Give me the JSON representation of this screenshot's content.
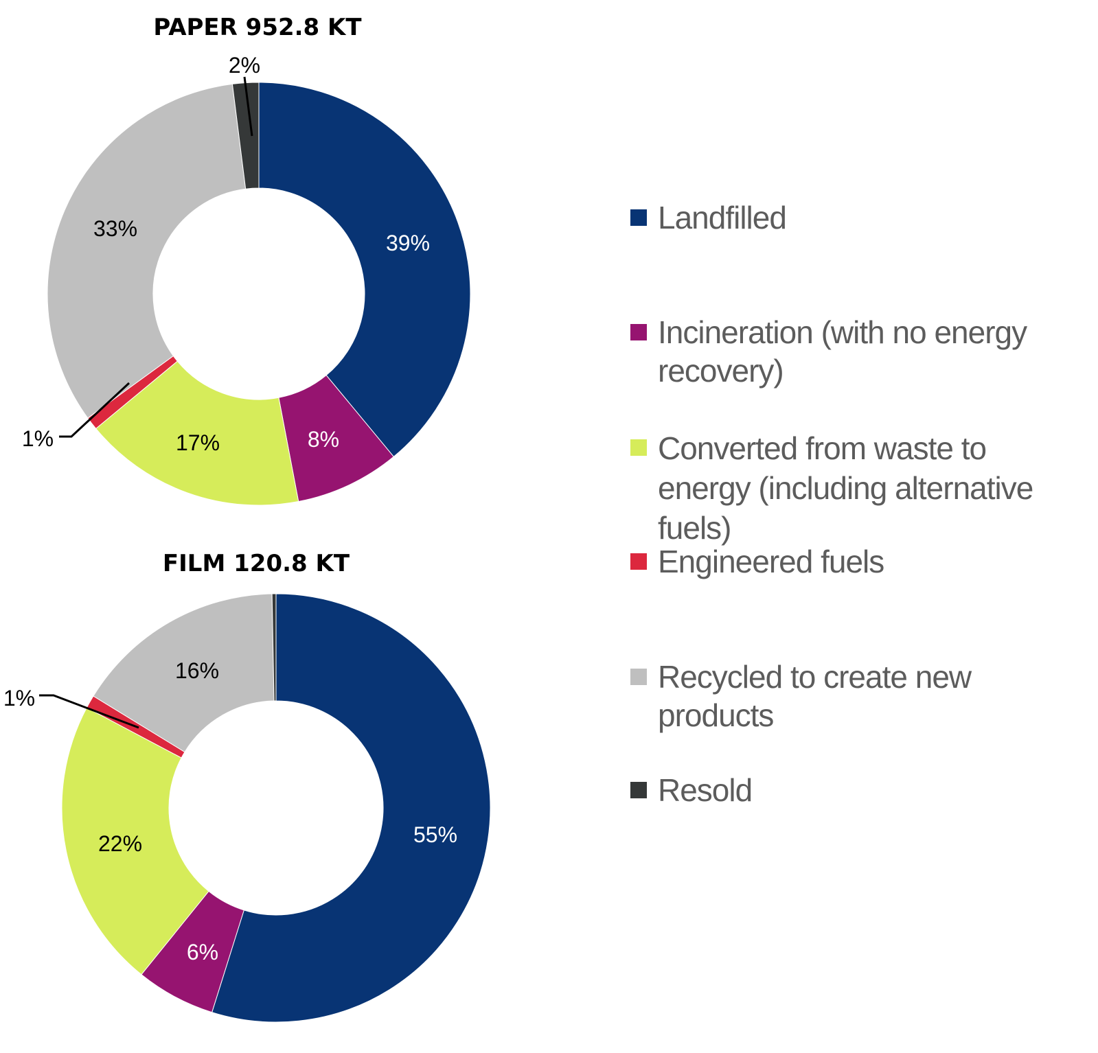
{
  "colors": {
    "Landfilled": "#083474",
    "Incineration": "#961470",
    "Converted": "#d6ec5a",
    "Engineered": "#dc283e",
    "Recycled": "#bfbfbf",
    "Resold": "#353838"
  },
  "legend": [
    {
      "key": "Landfilled",
      "label": "Landfilled"
    },
    {
      "key": "Incineration",
      "label": "Incineration (with no energy recovery)"
    },
    {
      "key": "Converted",
      "label": "Converted from waste to energy (including alternative fuels)"
    },
    {
      "key": "Engineered",
      "label": "Engineered fuels"
    },
    {
      "key": "Recycled",
      "label": "Recycled to create new products"
    },
    {
      "key": "Resold",
      "label": "Resold"
    }
  ],
  "chart_data": [
    {
      "type": "pie",
      "donut": true,
      "title": "PAPER 952.8 KT",
      "legend_position": "right",
      "slices": [
        {
          "key": "Landfilled",
          "value": 39,
          "label": "39%"
        },
        {
          "key": "Incineration",
          "value": 8,
          "label": "8%"
        },
        {
          "key": "Converted",
          "value": 17,
          "label": "17%"
        },
        {
          "key": "Engineered",
          "value": 1,
          "label": "1%"
        },
        {
          "key": "Recycled",
          "value": 33,
          "label": "33%"
        },
        {
          "key": "Resold",
          "value": 2,
          "label": "2%"
        }
      ]
    },
    {
      "type": "pie",
      "donut": true,
      "title": "FILM 120.8 KT",
      "legend_position": "right",
      "slices": [
        {
          "key": "Landfilled",
          "value": 55,
          "label": "55%"
        },
        {
          "key": "Incineration",
          "value": 6,
          "label": "6%"
        },
        {
          "key": "Converted",
          "value": 22,
          "label": "22%"
        },
        {
          "key": "Engineered",
          "value": 1,
          "label": "1%"
        },
        {
          "key": "Recycled",
          "value": 16,
          "label": "16%"
        },
        {
          "key": "Resold",
          "value": 0.3,
          "label": ""
        }
      ]
    }
  ]
}
